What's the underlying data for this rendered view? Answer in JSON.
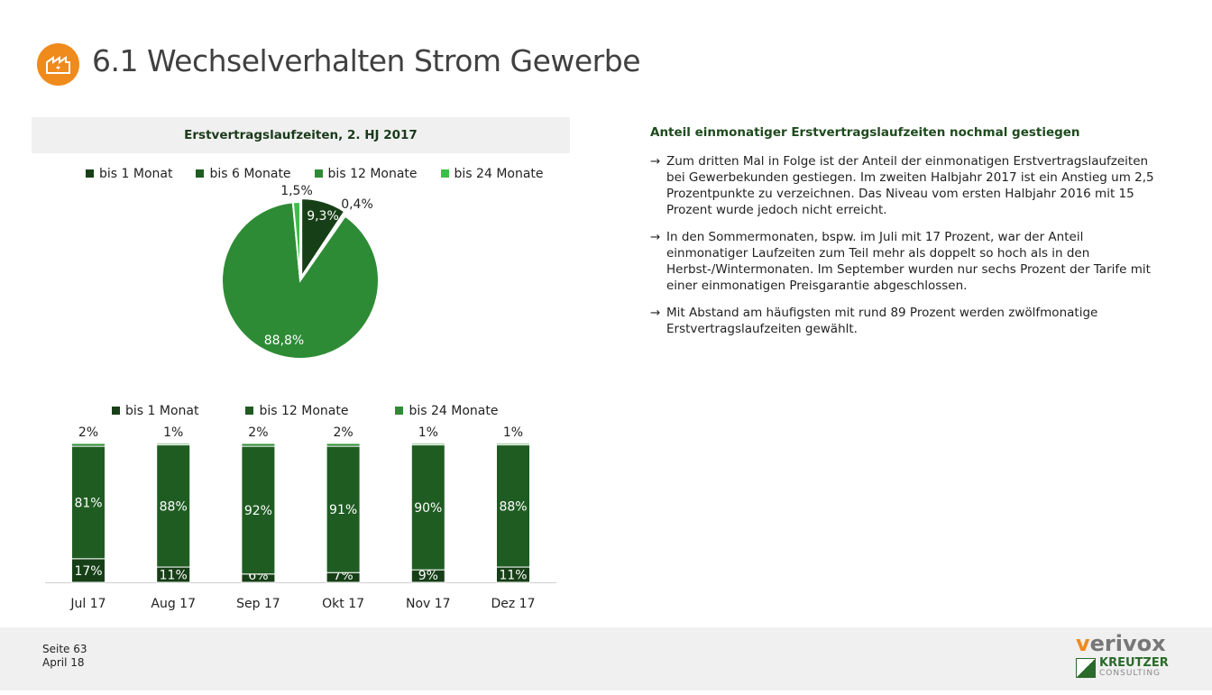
{
  "header": {
    "title": "6.1 Wechselverhalten Strom Gewerbe",
    "icon": "factory-lightning-icon"
  },
  "chart_data": [
    {
      "type": "pie",
      "title": "Erstvertragslaufzeiten, 2. HJ 2017",
      "slices": [
        {
          "name": "bis 1 Monat",
          "value": 9.3,
          "label": "9,3%",
          "color": "#173f17"
        },
        {
          "name": "bis 6 Monate",
          "value": 0.4,
          "label": "0,4%",
          "color": "#1e5c22"
        },
        {
          "name": "bis 12 Monate",
          "value": 88.8,
          "label": "88,8%",
          "color": "#2e8b35"
        },
        {
          "name": "bis 24 Monate",
          "value": 1.5,
          "label": "1,5%",
          "color": "#3cbf48"
        }
      ]
    },
    {
      "type": "bar",
      "stacked": true,
      "categories": [
        "Jul 17",
        "Aug 17",
        "Sep 17",
        "Okt 17",
        "Nov 17",
        "Dez 17"
      ],
      "series": [
        {
          "name": "bis 1 Monat",
          "color": "#173f17",
          "values": [
            17,
            11,
            6,
            7,
            9,
            11
          ]
        },
        {
          "name": "bis 12 Monate",
          "color": "#1f5c22",
          "values": [
            81,
            88,
            92,
            91,
            90,
            88
          ]
        },
        {
          "name": "bis 24 Monate",
          "color": "#2e8b35",
          "values": [
            2,
            1,
            2,
            2,
            1,
            1
          ]
        }
      ]
    }
  ],
  "text": {
    "heading": "Anteil einmonatiger Erstvertragslaufzeiten nochmal gestiegen",
    "arrow": "→",
    "bullets": [
      "Zum dritten Mal in Folge ist der Anteil der einmonatigen Erstvertragslaufzeiten bei Gewerbekunden gestiegen. Im zweiten Halbjahr 2017 ist ein Anstieg um 2,5 Prozentpunkte zu verzeichnen. Das Niveau vom ersten Halbjahr 2016 mit 15 Prozent wurde jedoch nicht erreicht.",
      "In den Sommermonaten, bspw. im Juli mit 17 Prozent, war der Anteil einmonatiger Laufzeiten zum Teil mehr als doppelt so hoch als in den Herbst-/Wintermonaten. Im September wurden nur sechs Prozent der Tarife mit einer einmonatigen Preisgarantie abgeschlossen.",
      "Mit Abstand am häufigsten mit rund 89 Prozent werden zwölfmonatige Erstvertragslaufzeiten gewählt."
    ]
  },
  "footer": {
    "page": "Seite 63",
    "date": "April 18",
    "brand1_v": "v",
    "brand1_rest": "erivox",
    "brand2a": "KREUTZER",
    "brand2b": "CONSULTING"
  }
}
